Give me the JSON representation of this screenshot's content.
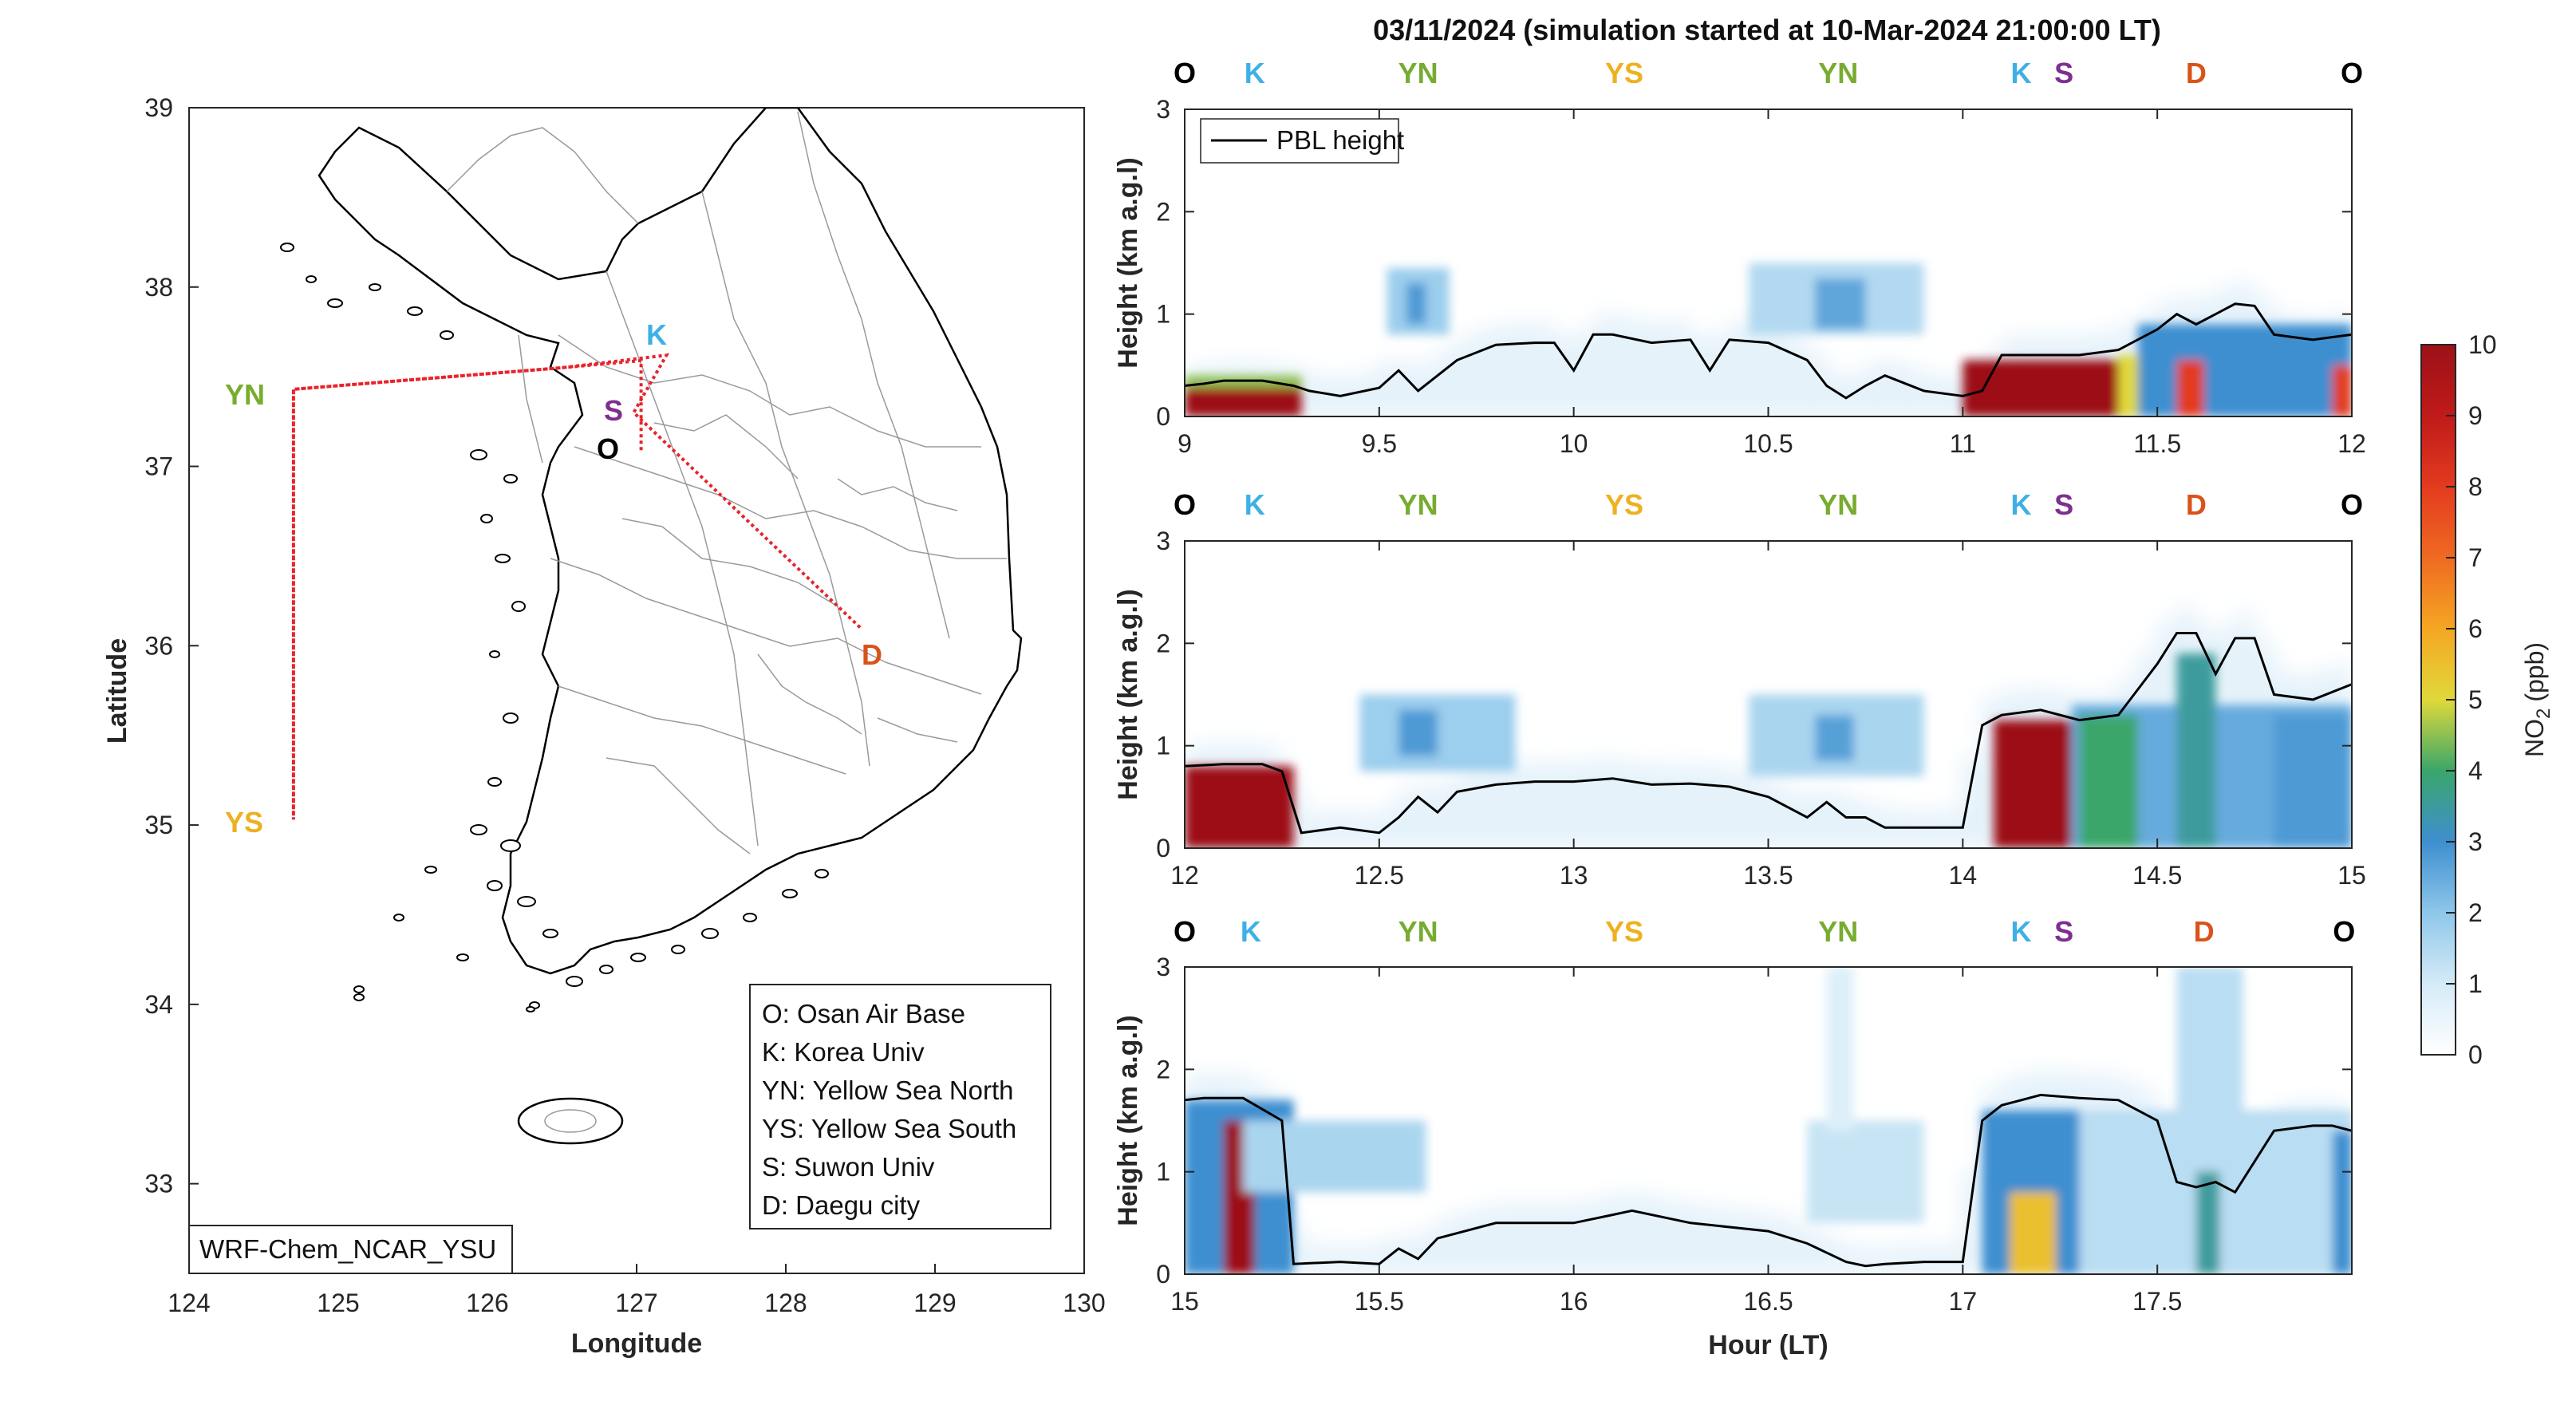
{
  "figure_title": "03/11/2024 (simulation started at 10-Mar-2024 21:00:00 LT)",
  "colors": {
    "O": "#000000",
    "K": "#3fb0e6",
    "YN": "#77ac30",
    "YS": "#edb120",
    "S": "#7e2f8e",
    "D": "#d95319",
    "route": "#e8232a",
    "pbl": "#000000",
    "coast": "#000000",
    "boundary": "#9a9a9a"
  },
  "chart_data": [
    {
      "type": "map",
      "id": "map",
      "xlabel": "Longitude",
      "ylabel": "Latitude",
      "xlim": [
        124,
        130
      ],
      "ylim": [
        32.5,
        39
      ],
      "xticks": [
        "124",
        "125",
        "126",
        "127",
        "128",
        "129",
        "130"
      ],
      "yticks": [
        "33",
        "34",
        "35",
        "36",
        "37",
        "38",
        "39"
      ],
      "model_label": "WRF-Chem_NCAR_YSU",
      "sites": [
        {
          "code": "K",
          "name": "Korea Univ",
          "lon": 127.03,
          "lat": 37.59
        },
        {
          "code": "YN",
          "name": "Yellow Sea North",
          "lon": 124.7,
          "lat": 37.43
        },
        {
          "code": "YS",
          "name": "Yellow Sea South",
          "lon": 124.7,
          "lat": 35.03
        },
        {
          "code": "S",
          "name": "Suwon Univ",
          "lon": 126.98,
          "lat": 37.3
        },
        {
          "code": "O",
          "name": "Osan Air Base",
          "lon": 127.03,
          "lat": 37.09
        },
        {
          "code": "D",
          "name": "Daegu city",
          "lon": 128.6,
          "lat": 35.87
        }
      ],
      "route": [
        [
          127.03,
          37.09
        ],
        [
          127.03,
          37.59
        ],
        [
          126.5,
          37.55
        ],
        [
          124.7,
          37.43
        ],
        [
          124.7,
          35.03
        ],
        [
          124.7,
          37.43
        ],
        [
          126.5,
          37.55
        ],
        [
          127.2,
          37.62
        ],
        [
          126.98,
          37.3
        ],
        [
          128.5,
          36.1
        ]
      ],
      "legend": [
        "O: Osan Air Base",
        "K: Korea Univ",
        "YN: Yellow Sea North",
        "YS: Yellow Sea South",
        "S: Suwon Univ",
        "D: Daegu city"
      ]
    },
    {
      "type": "heatmap",
      "id": "panel1",
      "xlim": [
        9,
        12
      ],
      "ylim": [
        0,
        3
      ],
      "xticks": [
        "9",
        "9.5",
        "10",
        "10.5",
        "11",
        "11.5",
        "12"
      ],
      "yticks": [
        "0",
        "1",
        "2",
        "3"
      ],
      "ylabel": "Height (km a.g.l)",
      "legend": "PBL height",
      "site_labels": [
        {
          "label": "O",
          "x": 9.0
        },
        {
          "label": "K",
          "x": 9.18
        },
        {
          "label": "YN",
          "x": 9.6
        },
        {
          "label": "YS",
          "x": 10.13
        },
        {
          "label": "YN",
          "x": 10.68
        },
        {
          "label": "K",
          "x": 11.15
        },
        {
          "label": "S",
          "x": 11.26
        },
        {
          "label": "D",
          "x": 11.6
        },
        {
          "label": "O",
          "x": 12.0
        }
      ],
      "pbl_height": {
        "x": [
          9.0,
          9.05,
          9.1,
          9.2,
          9.28,
          9.32,
          9.4,
          9.5,
          9.55,
          9.6,
          9.7,
          9.8,
          9.9,
          9.95,
          10.0,
          10.05,
          10.1,
          10.2,
          10.3,
          10.35,
          10.4,
          10.5,
          10.6,
          10.65,
          10.7,
          10.75,
          10.8,
          10.9,
          11.0,
          11.05,
          11.1,
          11.2,
          11.3,
          11.4,
          11.5,
          11.55,
          11.6,
          11.65,
          11.7,
          11.75,
          11.8,
          11.9,
          12.0
        ],
        "y": [
          0.3,
          0.32,
          0.35,
          0.35,
          0.3,
          0.25,
          0.2,
          0.28,
          0.45,
          0.25,
          0.55,
          0.7,
          0.72,
          0.72,
          0.45,
          0.8,
          0.8,
          0.72,
          0.75,
          0.45,
          0.75,
          0.72,
          0.55,
          0.3,
          0.18,
          0.3,
          0.4,
          0.25,
          0.2,
          0.25,
          0.6,
          0.6,
          0.6,
          0.65,
          0.85,
          1.0,
          0.9,
          1.0,
          1.1,
          1.08,
          0.8,
          0.75,
          0.8
        ]
      }
    },
    {
      "type": "heatmap",
      "id": "panel2",
      "xlim": [
        12,
        15
      ],
      "ylim": [
        0,
        3
      ],
      "xticks": [
        "12",
        "12.5",
        "13",
        "13.5",
        "14",
        "14.5",
        "15"
      ],
      "yticks": [
        "0",
        "1",
        "2",
        "3"
      ],
      "ylabel": "Height (km a.g.l)",
      "site_labels": [
        {
          "label": "O",
          "x": 12.0
        },
        {
          "label": "K",
          "x": 12.18
        },
        {
          "label": "YN",
          "x": 12.6
        },
        {
          "label": "YS",
          "x": 13.13
        },
        {
          "label": "YN",
          "x": 13.68
        },
        {
          "label": "K",
          "x": 14.15
        },
        {
          "label": "S",
          "x": 14.26
        },
        {
          "label": "D",
          "x": 14.6
        },
        {
          "label": "O",
          "x": 15.0
        }
      ],
      "pbl_height": {
        "x": [
          12.0,
          12.1,
          12.2,
          12.25,
          12.3,
          12.4,
          12.5,
          12.55,
          12.6,
          12.65,
          12.7,
          12.8,
          12.9,
          13.0,
          13.1,
          13.2,
          13.3,
          13.4,
          13.5,
          13.6,
          13.65,
          13.7,
          13.75,
          13.8,
          13.9,
          14.0,
          14.05,
          14.1,
          14.2,
          14.3,
          14.4,
          14.5,
          14.55,
          14.6,
          14.65,
          14.7,
          14.75,
          14.8,
          14.9,
          15.0
        ],
        "y": [
          0.8,
          0.82,
          0.82,
          0.75,
          0.15,
          0.2,
          0.15,
          0.3,
          0.5,
          0.35,
          0.55,
          0.62,
          0.65,
          0.65,
          0.68,
          0.62,
          0.63,
          0.6,
          0.5,
          0.3,
          0.45,
          0.3,
          0.3,
          0.2,
          0.2,
          0.2,
          1.2,
          1.3,
          1.35,
          1.25,
          1.3,
          1.8,
          2.1,
          2.1,
          1.7,
          2.05,
          2.05,
          1.5,
          1.45,
          1.6
        ]
      }
    },
    {
      "type": "heatmap",
      "id": "panel3",
      "xlim": [
        15,
        18
      ],
      "ylim": [
        0,
        3
      ],
      "xticks": [
        "15",
        "15.5",
        "16",
        "16.5",
        "17",
        "17.5"
      ],
      "yticks": [
        "0",
        "1",
        "2",
        "3"
      ],
      "xlabel": "Hour (LT)",
      "ylabel": "Height (km a.g.l)",
      "site_labels": [
        {
          "label": "O",
          "x": 15.0
        },
        {
          "label": "K",
          "x": 15.17
        },
        {
          "label": "YN",
          "x": 15.6
        },
        {
          "label": "YS",
          "x": 16.13
        },
        {
          "label": "YN",
          "x": 16.68
        },
        {
          "label": "K",
          "x": 17.15
        },
        {
          "label": "S",
          "x": 17.26
        },
        {
          "label": "D",
          "x": 17.62
        },
        {
          "label": "O",
          "x": 17.98
        }
      ],
      "pbl_height": {
        "x": [
          15.0,
          15.05,
          15.15,
          15.25,
          15.28,
          15.4,
          15.5,
          15.55,
          15.6,
          15.65,
          15.8,
          16.0,
          16.1,
          16.15,
          16.3,
          16.5,
          16.6,
          16.7,
          16.75,
          16.8,
          16.9,
          17.0,
          17.05,
          17.1,
          17.2,
          17.3,
          17.4,
          17.5,
          17.55,
          17.6,
          17.65,
          17.7,
          17.8,
          17.9,
          17.95,
          18.0
        ],
        "y": [
          1.7,
          1.72,
          1.72,
          1.5,
          0.1,
          0.12,
          0.1,
          0.25,
          0.15,
          0.35,
          0.5,
          0.5,
          0.58,
          0.62,
          0.5,
          0.42,
          0.3,
          0.12,
          0.08,
          0.1,
          0.12,
          0.12,
          1.5,
          1.65,
          1.75,
          1.72,
          1.7,
          1.5,
          0.9,
          0.85,
          0.9,
          0.8,
          1.4,
          1.45,
          1.45,
          1.4
        ]
      }
    },
    {
      "type": "colorbar",
      "id": "colorbar",
      "label_main": "NO",
      "label_sub": "2",
      "label_unit": "(ppb)",
      "ylim": [
        0,
        10
      ],
      "ticks": [
        "0",
        "1",
        "2",
        "3",
        "4",
        "5",
        "6",
        "7",
        "8",
        "9",
        "10"
      ]
    }
  ]
}
